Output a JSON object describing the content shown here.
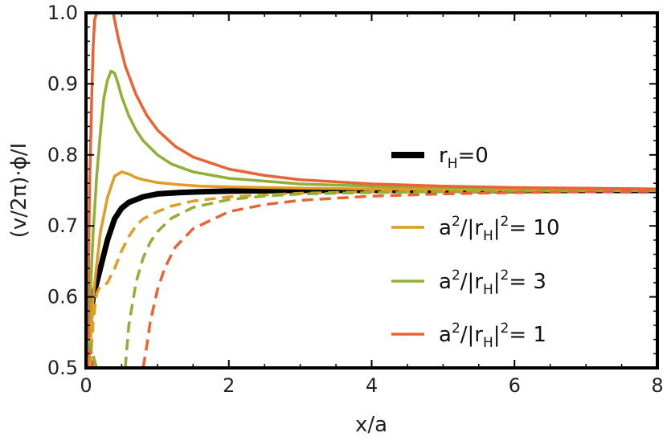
{
  "chart_data": {
    "type": "line",
    "xlabel": "x/a",
    "ylabel": "(v/2π)·ϕ/I",
    "xlim": [
      0,
      8
    ],
    "ylim": [
      0.5,
      1.0
    ],
    "x_ticks": [
      "0",
      "2",
      "4",
      "6",
      "8"
    ],
    "y_ticks": [
      "0.5",
      "0.6",
      "0.7",
      "0.8",
      "0.9",
      "1.0"
    ],
    "grid": false,
    "legend_position": "right",
    "legend": [
      {
        "label_main": "r",
        "label_sub": "H",
        "label_tail": "=0",
        "color": "#000000"
      },
      {
        "label_a": "a",
        "label_sup1": "2",
        "label_b": "/|r",
        "label_sub": "H",
        "label_c": "|",
        "label_sup2": "2",
        "label_d": "= 10",
        "color": "#E19C24"
      },
      {
        "label_a": "a",
        "label_sup1": "2",
        "label_b": "/|r",
        "label_sub": "H",
        "label_c": "|",
        "label_sup2": "2",
        "label_d": "= 3",
        "color": "#8FB032"
      },
      {
        "label_a": "a",
        "label_sup1": "2",
        "label_b": "/|r",
        "label_sub": "H",
        "label_c": "|",
        "label_sup2": "2",
        "label_d": "= 1",
        "color": "#EB6235"
      }
    ],
    "series": [
      {
        "style": "solid",
        "color": "#000000",
        "width": 7,
        "x": [
          0,
          0.05,
          0.1,
          0.2,
          0.3,
          0.4,
          0.5,
          0.6,
          0.8,
          1.0,
          1.3,
          1.6,
          2.0,
          3.0,
          4.0,
          6.0,
          8.0
        ],
        "y": [
          0.5,
          0.56,
          0.6,
          0.64,
          0.68,
          0.71,
          0.725,
          0.733,
          0.741,
          0.745,
          0.747,
          0.748,
          0.749,
          0.75,
          0.75,
          0.75,
          0.75
        ]
      },
      {
        "style": "solid",
        "color": "#E19C24",
        "width": 3.5,
        "x": [
          0.04,
          0.1,
          0.2,
          0.3,
          0.4,
          0.5,
          0.6,
          0.7,
          0.8,
          1.0,
          1.3,
          1.6,
          2.0,
          3.0,
          4.0,
          6.0,
          8.0
        ],
        "y": [
          0.5,
          0.6,
          0.69,
          0.74,
          0.77,
          0.776,
          0.773,
          0.768,
          0.765,
          0.761,
          0.758,
          0.756,
          0.755,
          0.753,
          0.752,
          0.751,
          0.75
        ]
      },
      {
        "style": "dashed",
        "color": "#E19C24",
        "width": 3.5,
        "x": [
          0.06,
          0.1,
          0.15,
          0.2,
          0.25,
          0.3,
          0.4,
          0.5,
          0.6,
          0.7,
          0.8,
          1.0,
          1.2,
          1.5,
          2.0,
          3.0,
          4.0,
          6.0,
          8.0
        ],
        "y": [
          0.5,
          0.565,
          0.605,
          0.615,
          0.616,
          0.62,
          0.64,
          0.665,
          0.685,
          0.7,
          0.71,
          0.72,
          0.728,
          0.735,
          0.741,
          0.746,
          0.748,
          0.749,
          0.75
        ]
      },
      {
        "style": "solid",
        "color": "#8FB032",
        "width": 3.5,
        "x": [
          0.02,
          0.05,
          0.1,
          0.15,
          0.2,
          0.25,
          0.3,
          0.35,
          0.4,
          0.45,
          0.5,
          0.6,
          0.7,
          0.8,
          1.0,
          1.2,
          1.5,
          2.0,
          3.0,
          4.0,
          6.0,
          8.0
        ],
        "y": [
          0.5,
          0.58,
          0.69,
          0.77,
          0.83,
          0.88,
          0.905,
          0.918,
          0.915,
          0.9,
          0.882,
          0.855,
          0.835,
          0.82,
          0.8,
          0.787,
          0.776,
          0.767,
          0.759,
          0.756,
          0.753,
          0.752
        ]
      },
      {
        "style": "dashed",
        "color": "#8FB032",
        "width": 3.5,
        "x": [
          0.55,
          0.6,
          0.7,
          0.8,
          0.9,
          1.0,
          1.2,
          1.5,
          2.0,
          2.5,
          3.0,
          4.0,
          5.0,
          6.0,
          8.0
        ],
        "y": [
          0.5,
          0.56,
          0.62,
          0.655,
          0.677,
          0.692,
          0.711,
          0.726,
          0.737,
          0.742,
          0.745,
          0.747,
          0.748,
          0.749,
          0.75
        ]
      },
      {
        "style": "solid",
        "color": "#EB6235",
        "width": 3.5,
        "x": [
          0.02,
          0.05,
          0.08,
          0.1,
          0.12,
          0.15
        ],
        "y": [
          0.5,
          0.75,
          0.88,
          0.95,
          0.99,
          1.0
        ]
      },
      {
        "style": "solid",
        "color": "#EB6235",
        "width": 3.5,
        "x": [
          0.38,
          0.45,
          0.55,
          0.7,
          0.85,
          1.0,
          1.25,
          1.5,
          2.0,
          2.5,
          3.0,
          4.0,
          5.0,
          6.0,
          8.0
        ],
        "y": [
          1.0,
          0.965,
          0.925,
          0.885,
          0.856,
          0.835,
          0.812,
          0.797,
          0.78,
          0.771,
          0.765,
          0.759,
          0.756,
          0.754,
          0.752
        ]
      },
      {
        "style": "dashed",
        "color": "#EB6235",
        "width": 3.5,
        "x": [
          0.8,
          0.85,
          0.9,
          1.0,
          1.1,
          1.25,
          1.5,
          2.0,
          2.5,
          3.0,
          4.0,
          5.0,
          6.0,
          8.0
        ],
        "y": [
          0.5,
          0.53,
          0.565,
          0.61,
          0.64,
          0.67,
          0.696,
          0.72,
          0.73,
          0.736,
          0.742,
          0.745,
          0.747,
          0.749
        ]
      },
      {
        "style": "dashed",
        "color": "#EB6235",
        "width": 3.5,
        "x": [
          0.02,
          0.04,
          0.06,
          0.08,
          0.1
        ],
        "y": [
          0.56,
          0.545,
          0.53,
          0.515,
          0.5
        ]
      },
      {
        "style": "dashed",
        "color": "#8FB032",
        "width": 3.5,
        "x": [
          0.02,
          0.05,
          0.08,
          0.12,
          0.15
        ],
        "y": [
          0.54,
          0.535,
          0.525,
          0.51,
          0.5
        ]
      }
    ]
  }
}
